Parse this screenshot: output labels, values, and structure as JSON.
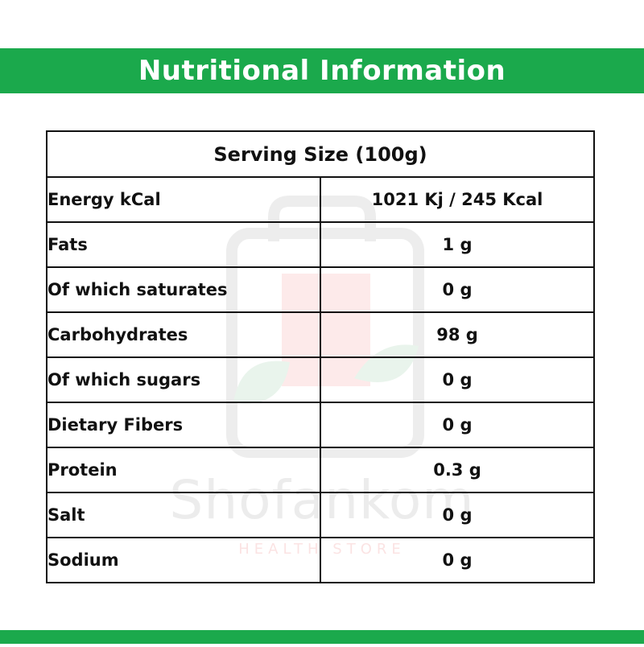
{
  "header": {
    "title": "Nutritional Information"
  },
  "watermark": {
    "brand": "Shofankom",
    "tagline": "HEALTH STORE"
  },
  "table": {
    "serving_size": "Serving Size (100g)",
    "rows": [
      {
        "label": "Energy kCal",
        "value": "1021 Kj / 245 Kcal"
      },
      {
        "label": "Fats",
        "value": "1 g"
      },
      {
        "label": "Of which saturates",
        "value": "0 g"
      },
      {
        "label": "Carbohydrates",
        "value": "98 g"
      },
      {
        "label": "Of which sugars",
        "value": "0 g"
      },
      {
        "label": "Dietary Fibers",
        "value": "0 g"
      },
      {
        "label": "Protein",
        "value": "0.3 g"
      },
      {
        "label": "Salt",
        "value": "0 g"
      },
      {
        "label": "Sodium",
        "value": "0 g"
      }
    ]
  },
  "colors": {
    "brand_green": "#1ba94c",
    "serving_red": "#e41e26",
    "border": "#111111"
  }
}
